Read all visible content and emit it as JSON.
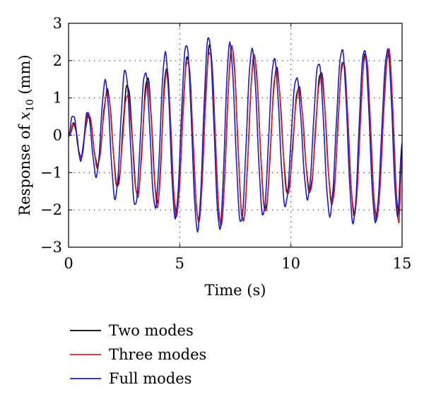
{
  "chart_data": {
    "type": "line",
    "title": "",
    "xlabel": "Time (s)",
    "ylabel": {
      "prefix": "Response of ",
      "var": "x",
      "subscript": "10",
      "suffix": " (mm)"
    },
    "xlim": [
      0,
      15
    ],
    "ylim": [
      -3,
      3
    ],
    "xticks": [
      0,
      5,
      10,
      15
    ],
    "yticks": [
      -3,
      -2,
      -1,
      0,
      1,
      2,
      3
    ],
    "ytick_labels": [
      "−3",
      "−2",
      "−1",
      "0",
      "1",
      "2",
      "3"
    ],
    "grid": "dotted",
    "legend_position": "below",
    "series": [
      {
        "name": "Two modes",
        "color": "#000000",
        "peaks": [
          [
            0.0,
            0.0
          ],
          [
            0.25,
            0.3
          ],
          [
            0.55,
            -0.6
          ],
          [
            0.9,
            0.55
          ],
          [
            1.3,
            -0.8
          ],
          [
            1.75,
            1.2
          ],
          [
            2.2,
            -1.35
          ],
          [
            2.65,
            1.35
          ],
          [
            3.1,
            -1.6
          ],
          [
            3.55,
            1.55
          ],
          [
            4.0,
            -1.8
          ],
          [
            4.4,
            1.8
          ],
          [
            4.85,
            -2.1
          ],
          [
            5.35,
            2.1
          ],
          [
            5.85,
            -2.3
          ],
          [
            6.35,
            2.4
          ],
          [
            6.85,
            -2.4
          ],
          [
            7.35,
            2.35
          ],
          [
            7.85,
            -2.3
          ],
          [
            8.35,
            2.1
          ],
          [
            8.85,
            -2.0
          ],
          [
            9.35,
            1.8
          ],
          [
            9.85,
            -1.5
          ],
          [
            10.35,
            1.3
          ],
          [
            10.85,
            -1.5
          ],
          [
            11.35,
            1.7
          ],
          [
            11.85,
            -1.8
          ],
          [
            12.35,
            2.0
          ],
          [
            12.85,
            -2.1
          ],
          [
            13.35,
            2.2
          ],
          [
            13.85,
            -2.2
          ],
          [
            14.4,
            2.2
          ],
          [
            14.85,
            -2.1
          ],
          [
            15.0,
            -0.5
          ]
        ]
      },
      {
        "name": "Three modes",
        "color": "#e02020",
        "peaks": [
          [
            0.0,
            0.0
          ],
          [
            0.25,
            0.3
          ],
          [
            0.55,
            -0.6
          ],
          [
            0.9,
            0.6
          ],
          [
            1.3,
            -0.85
          ],
          [
            1.75,
            1.15
          ],
          [
            2.2,
            -1.4
          ],
          [
            2.65,
            1.1
          ],
          [
            3.1,
            -1.65
          ],
          [
            3.55,
            1.4
          ],
          [
            4.0,
            -1.9
          ],
          [
            4.4,
            1.65
          ],
          [
            4.85,
            -2.15
          ],
          [
            5.35,
            2.0
          ],
          [
            5.85,
            -2.3
          ],
          [
            6.35,
            2.25
          ],
          [
            6.85,
            -2.4
          ],
          [
            7.35,
            2.4
          ],
          [
            7.85,
            -2.3
          ],
          [
            8.35,
            2.15
          ],
          [
            8.85,
            -2.05
          ],
          [
            9.35,
            1.75
          ],
          [
            9.85,
            -1.6
          ],
          [
            10.35,
            1.25
          ],
          [
            10.85,
            -1.55
          ],
          [
            11.35,
            1.6
          ],
          [
            11.85,
            -1.85
          ],
          [
            12.35,
            1.95
          ],
          [
            12.85,
            -2.15
          ],
          [
            13.35,
            2.15
          ],
          [
            13.85,
            -2.25
          ],
          [
            14.4,
            2.3
          ],
          [
            14.85,
            -2.3
          ],
          [
            15.0,
            -0.6
          ]
        ]
      },
      {
        "name": "Full modes",
        "color": "#1a1acc",
        "peaks": [
          [
            0.0,
            0.0
          ],
          [
            0.2,
            0.55
          ],
          [
            0.55,
            -0.65
          ],
          [
            0.85,
            0.6
          ],
          [
            1.25,
            -1.1
          ],
          [
            1.65,
            1.45
          ],
          [
            2.1,
            -1.7
          ],
          [
            2.55,
            1.75
          ],
          [
            3.0,
            -1.9
          ],
          [
            3.45,
            1.7
          ],
          [
            3.9,
            -1.95
          ],
          [
            4.35,
            2.2
          ],
          [
            4.8,
            -2.2
          ],
          [
            5.3,
            2.45
          ],
          [
            5.8,
            -2.55
          ],
          [
            6.3,
            2.65
          ],
          [
            6.8,
            -2.5
          ],
          [
            7.25,
            2.45
          ],
          [
            7.75,
            -2.35
          ],
          [
            8.25,
            2.3
          ],
          [
            8.75,
            -2.15
          ],
          [
            9.25,
            2.05
          ],
          [
            9.75,
            -1.9
          ],
          [
            10.25,
            1.55
          ],
          [
            10.75,
            -1.7
          ],
          [
            11.25,
            1.95
          ],
          [
            11.75,
            -2.15
          ],
          [
            12.3,
            2.3
          ],
          [
            12.8,
            -2.35
          ],
          [
            13.3,
            2.3
          ],
          [
            13.8,
            -2.3
          ],
          [
            14.35,
            2.3
          ],
          [
            14.8,
            -2.15
          ],
          [
            15.0,
            -0.2
          ]
        ]
      }
    ]
  }
}
